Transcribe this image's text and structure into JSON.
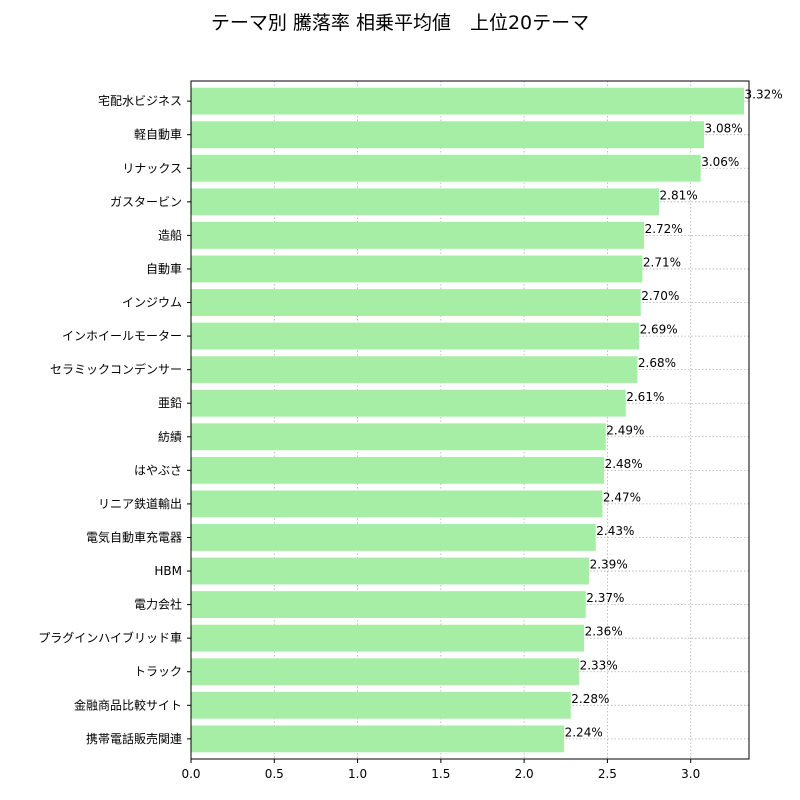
{
  "chart_data": {
    "type": "bar",
    "orientation": "horizontal",
    "title": "テーマ別 騰落率 相乗平均値　上位20テーマ",
    "xlabel": "",
    "ylabel": "",
    "xlim": [
      0,
      3.35
    ],
    "x_ticks": [
      0.0,
      0.5,
      1.0,
      1.5,
      2.0,
      2.5,
      3.0
    ],
    "x_tick_labels": [
      "0.0",
      "0.5",
      "1.0",
      "1.5",
      "2.0",
      "2.5",
      "3.0"
    ],
    "grid": true,
    "bar_color": "#a6eea6",
    "categories": [
      "宅配水ビジネス",
      "軽自動車",
      "リナックス",
      "ガスタービン",
      "造船",
      "自動車",
      "インジウム",
      "インホイールモーター",
      "セラミックコンデンサー",
      "亜鉛",
      "紡績",
      "はやぶさ",
      "リニア鉄道輸出",
      "電気自動車充電器",
      "HBM",
      "電力会社",
      "プラグインハイブリッド車",
      "トラック",
      "金融商品比較サイト",
      "携帯電話販売関連"
    ],
    "values": [
      3.32,
      3.08,
      3.06,
      2.81,
      2.72,
      2.71,
      2.7,
      2.69,
      2.68,
      2.61,
      2.49,
      2.48,
      2.47,
      2.43,
      2.39,
      2.37,
      2.36,
      2.33,
      2.28,
      2.24
    ],
    "data_labels": [
      "3.32%",
      "3.08%",
      "3.06%",
      "2.81%",
      "2.72%",
      "2.71%",
      "2.70%",
      "2.69%",
      "2.68%",
      "2.61%",
      "2.49%",
      "2.48%",
      "2.47%",
      "2.43%",
      "2.39%",
      "2.37%",
      "2.36%",
      "2.33%",
      "2.28%",
      "2.24%"
    ]
  }
}
